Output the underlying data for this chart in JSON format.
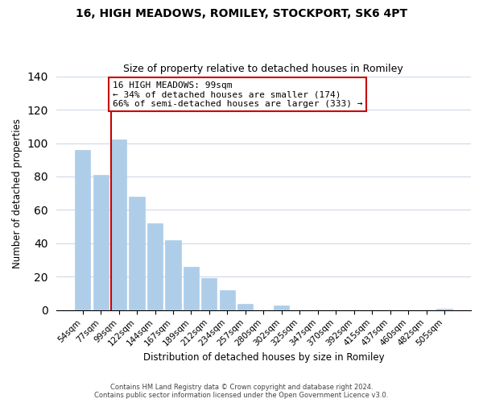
{
  "title": "16, HIGH MEADOWS, ROMILEY, STOCKPORT, SK6 4PT",
  "subtitle": "Size of property relative to detached houses in Romiley",
  "xlabel": "Distribution of detached houses by size in Romiley",
  "ylabel": "Number of detached properties",
  "bar_labels": [
    "54sqm",
    "77sqm",
    "99sqm",
    "122sqm",
    "144sqm",
    "167sqm",
    "189sqm",
    "212sqm",
    "234sqm",
    "257sqm",
    "280sqm",
    "302sqm",
    "325sqm",
    "347sqm",
    "370sqm",
    "392sqm",
    "415sqm",
    "437sqm",
    "460sqm",
    "482sqm",
    "505sqm"
  ],
  "bar_values": [
    96,
    81,
    102,
    68,
    52,
    42,
    26,
    19,
    12,
    4,
    0,
    3,
    0,
    0,
    0,
    0,
    0,
    0,
    0,
    0,
    1
  ],
  "bar_color": "#aecde8",
  "bar_edge_color": "#aecde8",
  "highlight_bar_index": 2,
  "highlight_line_color": "#cc0000",
  "ylim": [
    0,
    140
  ],
  "yticks": [
    0,
    20,
    40,
    60,
    80,
    100,
    120,
    140
  ],
  "annotation_title": "16 HIGH MEADOWS: 99sqm",
  "annotation_line1": "← 34% of detached houses are smaller (174)",
  "annotation_line2": "66% of semi-detached houses are larger (333) →",
  "annotation_box_edge_color": "#cc0000",
  "footer_line1": "Contains HM Land Registry data © Crown copyright and database right 2024.",
  "footer_line2": "Contains public sector information licensed under the Open Government Licence v3.0.",
  "title_fontsize": 10,
  "subtitle_fontsize": 9,
  "background_color": "#ffffff",
  "grid_color": "#d0d8e8"
}
